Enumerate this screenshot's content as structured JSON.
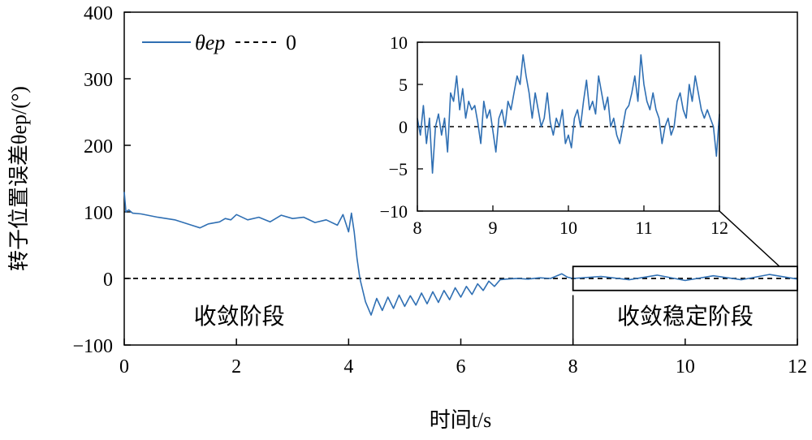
{
  "chart_data": {
    "type": "line",
    "xlabel": "时间t/s",
    "ylabel": "转子位置误差θep/(°)",
    "xlim": [
      0,
      12
    ],
    "ylim": [
      -100,
      400
    ],
    "xticks": [
      "0",
      "2",
      "4",
      "6",
      "8",
      "10",
      "12"
    ],
    "yticks": [
      "−100",
      "0",
      "100",
      "200",
      "300",
      "400"
    ],
    "legend": {
      "placement": "top-left",
      "entries": [
        {
          "label": "θep",
          "style": "solid",
          "color": "#2f6fb3"
        },
        {
          "label": "0",
          "style": "dashed",
          "color": "#000000"
        }
      ]
    },
    "annotations": [
      {
        "text": "收敛阶段",
        "x_range": [
          0,
          4.1
        ]
      },
      {
        "text": "收敛稳定阶段",
        "x_range": [
          8,
          12
        ]
      }
    ],
    "phase_divider_x": 8,
    "zoom_box": {
      "x": [
        8,
        12
      ],
      "y": [
        -10,
        10
      ]
    },
    "series": [
      {
        "name": "θep",
        "color": "#2f6fb3",
        "x": [
          0,
          0.03,
          0.08,
          0.15,
          0.3,
          0.6,
          0.9,
          1.2,
          1.35,
          1.5,
          1.7,
          1.8,
          1.9,
          2.0,
          2.2,
          2.4,
          2.6,
          2.8,
          3.0,
          3.2,
          3.4,
          3.6,
          3.8,
          3.9,
          4.0,
          4.05,
          4.1,
          4.15,
          4.2,
          4.3,
          4.4,
          4.5,
          4.6,
          4.7,
          4.8,
          4.9,
          5.0,
          5.1,
          5.2,
          5.3,
          5.4,
          5.5,
          5.6,
          5.7,
          5.8,
          5.9,
          6.0,
          6.1,
          6.2,
          6.3,
          6.4,
          6.5,
          6.6,
          6.7,
          6.8,
          7.0,
          7.2,
          7.4,
          7.6,
          7.8,
          7.9,
          8.0,
          8.5,
          9.0,
          9.5,
          10.0,
          10.5,
          11.0,
          11.5,
          12.0
        ],
        "y": [
          130,
          100,
          103,
          98,
          97,
          92,
          88,
          80,
          76,
          82,
          85,
          90,
          88,
          96,
          88,
          92,
          85,
          95,
          90,
          92,
          84,
          88,
          80,
          96,
          70,
          98,
          70,
          30,
          0,
          -35,
          -55,
          -30,
          -48,
          -28,
          -45,
          -25,
          -42,
          -26,
          -40,
          -22,
          -38,
          -20,
          -36,
          -18,
          -32,
          -14,
          -28,
          -12,
          -24,
          -8,
          -18,
          -4,
          -12,
          -2,
          -1,
          0,
          -1,
          1,
          0,
          7,
          2,
          0,
          3,
          -2,
          5,
          -3,
          4,
          -2,
          6,
          -1
        ]
      },
      {
        "name": "0",
        "color": "#000000",
        "x": [
          0,
          12
        ],
        "y": [
          0,
          0
        ]
      }
    ],
    "inset": {
      "type": "line",
      "xlim": [
        8,
        12
      ],
      "ylim": [
        -10,
        10
      ],
      "xticks": [
        "8",
        "9",
        "10",
        "11",
        "12"
      ],
      "yticks": [
        "−10",
        "−5",
        "0",
        "5",
        "10"
      ],
      "series": [
        {
          "name": "θep",
          "color": "#2f6fb3",
          "x": [
            8.0,
            8.04,
            8.08,
            8.12,
            8.16,
            8.2,
            8.24,
            8.28,
            8.32,
            8.36,
            8.4,
            8.44,
            8.48,
            8.52,
            8.56,
            8.6,
            8.64,
            8.68,
            8.72,
            8.76,
            8.8,
            8.84,
            8.88,
            8.92,
            8.96,
            9.0,
            9.04,
            9.08,
            9.12,
            9.16,
            9.2,
            9.24,
            9.28,
            9.32,
            9.36,
            9.4,
            9.44,
            9.48,
            9.52,
            9.56,
            9.6,
            9.64,
            9.68,
            9.72,
            9.76,
            9.8,
            9.84,
            9.88,
            9.92,
            9.96,
            10.0,
            10.04,
            10.08,
            10.12,
            10.16,
            10.2,
            10.24,
            10.28,
            10.32,
            10.36,
            10.4,
            10.44,
            10.48,
            10.52,
            10.56,
            10.6,
            10.64,
            10.68,
            10.72,
            10.76,
            10.8,
            10.84,
            10.88,
            10.92,
            10.96,
            11.0,
            11.04,
            11.08,
            11.12,
            11.16,
            11.2,
            11.24,
            11.28,
            11.32,
            11.36,
            11.4,
            11.44,
            11.48,
            11.52,
            11.56,
            11.6,
            11.64,
            11.68,
            11.72,
            11.76,
            11.8,
            11.84,
            11.88,
            11.92,
            11.96,
            12.0
          ],
          "y": [
            1,
            -1,
            2.5,
            -2,
            1,
            -5.5,
            0,
            1.5,
            -1,
            1,
            -3,
            4,
            3,
            6,
            2,
            4.5,
            1,
            3,
            2,
            2.5,
            0.5,
            -2,
            3,
            1,
            2,
            -0.5,
            -3,
            1,
            2,
            0,
            3,
            2,
            4,
            6,
            5,
            8.5,
            6,
            4,
            1,
            4,
            2,
            0,
            1,
            4,
            0.5,
            -1,
            1,
            0,
            2,
            -2,
            -1,
            -2.5,
            1,
            2,
            0,
            3,
            5.5,
            2,
            3,
            1.5,
            6,
            4,
            2,
            3.5,
            0,
            1,
            -1,
            -2,
            0,
            2,
            2.5,
            4,
            6,
            3,
            8.5,
            5,
            3,
            2,
            4,
            2,
            1,
            -2,
            0,
            1,
            -1,
            0,
            3,
            4,
            2,
            1,
            5,
            3,
            6,
            4,
            2,
            1,
            2,
            1,
            0,
            -3.5,
            1.5
          ]
        },
        {
          "name": "0",
          "color": "#000000",
          "x": [
            8,
            12
          ],
          "y": [
            0,
            0
          ]
        }
      ]
    }
  }
}
